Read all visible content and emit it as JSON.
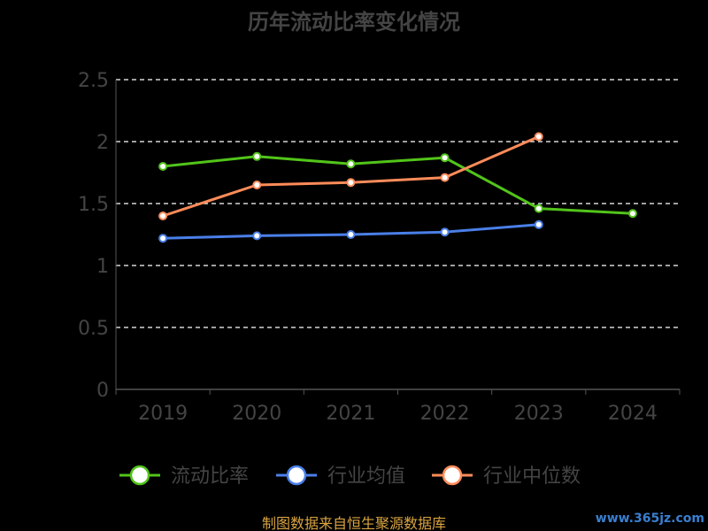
{
  "chart_data": {
    "type": "line",
    "title": "历年流动比率变化情况",
    "categories": [
      "2019",
      "2020",
      "2021",
      "2022",
      "2023",
      "2024"
    ],
    "y_ticks": [
      "0",
      "0.5",
      "1",
      "1.5",
      "2",
      "2.5"
    ],
    "ylim": [
      0,
      2.5
    ],
    "grid": true,
    "grid_style": "dashed",
    "legend_position": "bottom",
    "series": [
      {
        "name": "流动比率",
        "color": "#52c41a",
        "values": [
          1.8,
          1.88,
          1.82,
          1.87,
          1.46,
          1.42
        ]
      },
      {
        "name": "行业均值",
        "color": "#4a7fe8",
        "values": [
          1.22,
          1.24,
          1.25,
          1.27,
          1.33,
          null
        ]
      },
      {
        "name": "行业中位数",
        "color": "#ff8c5a",
        "values": [
          1.4,
          1.65,
          1.67,
          1.71,
          2.04,
          null
        ]
      }
    ]
  },
  "footer": {
    "source_note": "制图数据来自恒生聚源数据库",
    "watermark": "www.365jz.com"
  },
  "colors": {
    "background": "#000000",
    "title": "#444444",
    "axis": "#555555",
    "tick_label": "#444444",
    "grid": "#ffffff",
    "legend_text": "#444444",
    "source_note": "#d9a441",
    "watermark": "#3a7fd0"
  }
}
